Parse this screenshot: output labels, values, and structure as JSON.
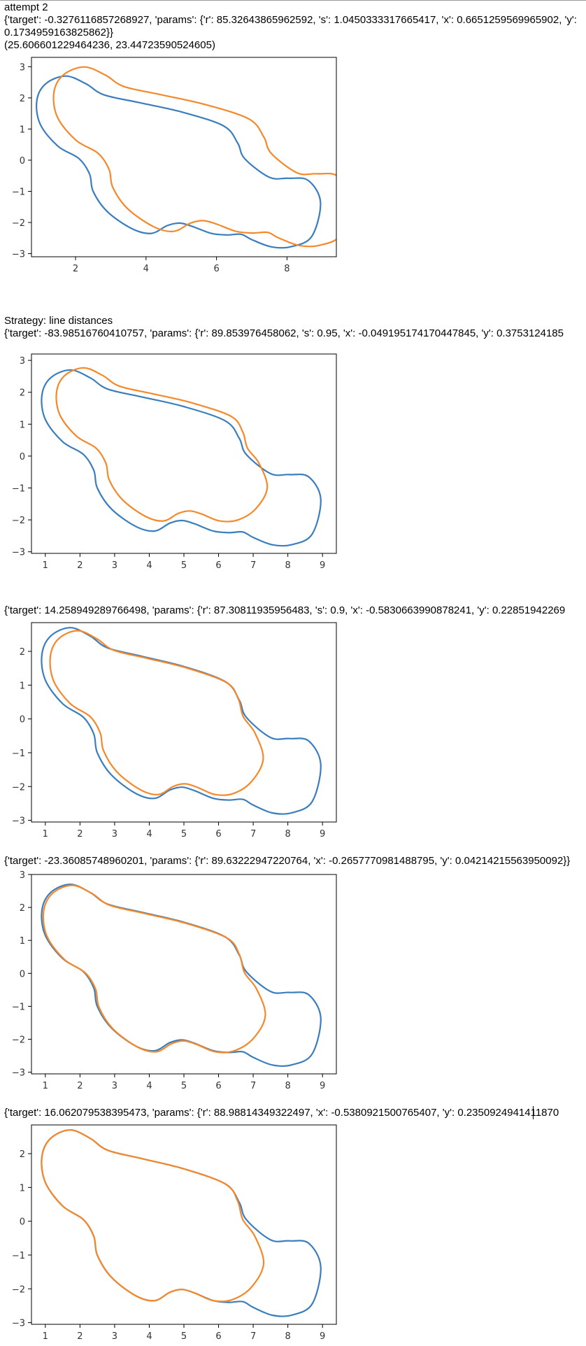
{
  "colors": {
    "blue": "#3a7ebf",
    "orange": "#f5882a"
  },
  "header": {
    "title": "attempt 2",
    "line1": "{'target': -0.3276116857268927, 'params': {'r': 85.32643865962592, 's': 1.0450333317665417, 'x': 0.6651259569965902, 'y':",
    "line2": "0.1734959163825862}}",
    "line3": "(25.606601229464236, 23.44723590524605)"
  },
  "strategy": {
    "label": "Strategy: line distances",
    "line": "{'target': -83.98516760410757, 'params': {'r': 89.853976458062, 's': 0.95, 'x': -0.049195174170447845, 'y': 0.3753124185"
  },
  "entries": [
    {
      "line": "{'target': 14.258949289766498, 'params': {'r': 87.30811935956483, 's': 0.9, 'x': -0.5830663990878241, 'y': 0.22851942269"
    },
    {
      "line": "{'target': -23.36085748960201, 'params': {'r': 89.63222947220764, 'x': -0.2657770981488795, 'y': 0.04214215563950092}}"
    },
    {
      "line": "{'target': 16.062079538395473, 'params': {'r': 88.98814349322497, 'x': -0.5380921500765407, 'y': 0.2350924941411870"
    }
  ],
  "chart_data": [
    {
      "type": "line",
      "xlim": [
        0.75,
        9.4
      ],
      "ylim": [
        -3.1,
        3.3
      ],
      "xticks": [
        "2",
        "4",
        "6",
        "8"
      ],
      "yticks": [
        "3",
        "2",
        "1",
        "0",
        "−1",
        "−2",
        "−3"
      ],
      "xtick_values": [
        2,
        4,
        6,
        8
      ],
      "ytick_values": [
        3,
        2,
        1,
        0,
        -1,
        -2,
        -3
      ],
      "series": [
        {
          "color": "blue",
          "shape": "base",
          "dx": 0,
          "dy": 0,
          "s": 1.0
        },
        {
          "color": "orange",
          "shape": "base",
          "dx": 0.67,
          "dy": 0.17,
          "s": 1.045
        }
      ]
    },
    {
      "type": "line",
      "xlim": [
        0.6,
        9.4
      ],
      "ylim": [
        -3.05,
        3.2
      ],
      "xticks": [
        "1",
        "2",
        "3",
        "4",
        "5",
        "6",
        "7",
        "8",
        "9"
      ],
      "yticks": [
        "3",
        "2",
        "1",
        "0",
        "−1",
        "−2",
        "−3"
      ],
      "xtick_values": [
        1,
        2,
        3,
        4,
        5,
        6,
        7,
        8,
        9
      ],
      "ytick_values": [
        3,
        2,
        1,
        0,
        -1,
        -2,
        -3
      ],
      "series": [
        {
          "color": "blue",
          "shape": "base",
          "dx": 0,
          "dy": 0,
          "s": 1.0
        },
        {
          "color": "orange",
          "shape": "trunc",
          "dx": 0.22,
          "dy": 0.2,
          "s": 0.95
        }
      ]
    },
    {
      "type": "line",
      "xlim": [
        0.6,
        9.4
      ],
      "ylim": [
        -3.05,
        2.85
      ],
      "xticks": [
        "1",
        "2",
        "3",
        "4",
        "5",
        "6",
        "7",
        "8",
        "9"
      ],
      "yticks": [
        "2",
        "1",
        "0",
        "−1",
        "−2",
        "−3"
      ],
      "xtick_values": [
        1,
        2,
        3,
        4,
        5,
        6,
        7,
        8,
        9
      ],
      "ytick_values": [
        2,
        1,
        0,
        -1,
        -2,
        -3
      ],
      "series": [
        {
          "color": "blue",
          "shape": "base",
          "dx": 0,
          "dy": 0,
          "s": 1.0
        },
        {
          "color": "orange",
          "shape": "trunc",
          "dx": 0.08,
          "dy": 0.02,
          "s": 0.96
        }
      ]
    },
    {
      "type": "line",
      "xlim": [
        0.6,
        9.4
      ],
      "ylim": [
        -3.05,
        3.0
      ],
      "xticks": [
        "1",
        "2",
        "3",
        "4",
        "5",
        "6",
        "7",
        "8",
        "9"
      ],
      "yticks": [
        "3",
        "2",
        "1",
        "0",
        "−1",
        "−2",
        "−3"
      ],
      "xtick_values": [
        1,
        2,
        3,
        4,
        5,
        6,
        7,
        8,
        9
      ],
      "ytick_values": [
        3,
        2,
        1,
        0,
        -1,
        -2,
        -3
      ],
      "series": [
        {
          "color": "blue",
          "shape": "base",
          "dx": 0,
          "dy": 0,
          "s": 1.0
        },
        {
          "color": "orange",
          "shape": "trunc",
          "dx": 0.05,
          "dy": -0.03,
          "s": 1.0
        }
      ]
    },
    {
      "type": "line",
      "xlim": [
        0.6,
        9.4
      ],
      "ylim": [
        -3.05,
        2.85
      ],
      "xticks": [
        "1",
        "2",
        "3",
        "4",
        "5",
        "6",
        "7",
        "8",
        "9"
      ],
      "yticks": [
        "2",
        "1",
        "0",
        "−1",
        "−2",
        "−3"
      ],
      "xtick_values": [
        1,
        2,
        3,
        4,
        5,
        6,
        7,
        8,
        9
      ],
      "ytick_values": [
        2,
        1,
        0,
        -1,
        -2,
        -3
      ],
      "series": [
        {
          "color": "blue",
          "shape": "base",
          "dx": 0,
          "dy": 0,
          "s": 1.0
        },
        {
          "color": "orange",
          "shape": "trunc",
          "dx": 0.0,
          "dy": 0.0,
          "s": 1.0
        }
      ]
    }
  ]
}
